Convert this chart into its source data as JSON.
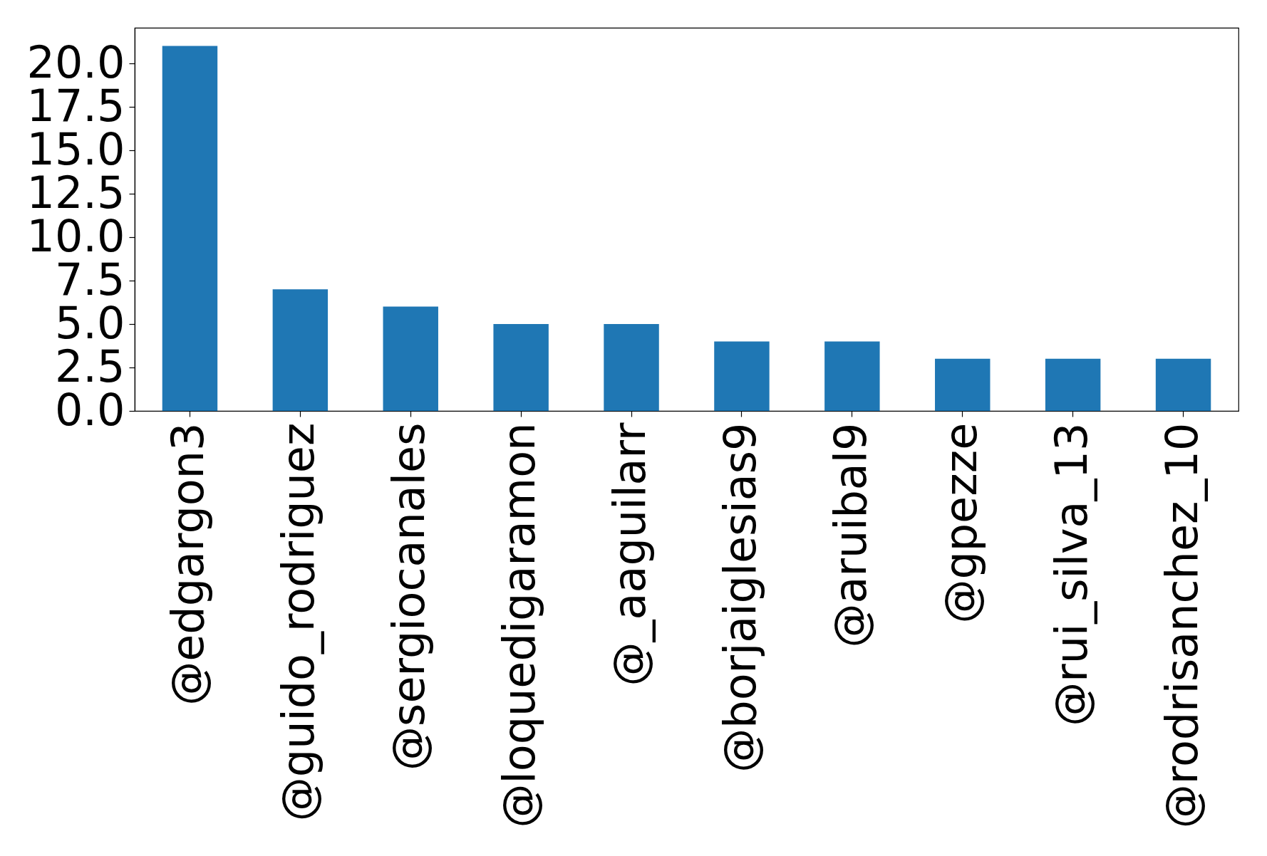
{
  "chart_data": {
    "type": "bar",
    "categories": [
      "@edgargon3",
      "@guido_rodriguez",
      "@sergiocanales",
      "@loquedigaramon",
      "@_aaguilarr",
      "@borjaiglesias9",
      "@aruibal9",
      "@gpezze",
      "@rui_silva_13",
      "@rodrisanchez_10"
    ],
    "values": [
      21,
      7,
      6,
      5,
      5,
      4,
      4,
      3,
      3,
      3
    ],
    "color": "#1f77b4",
    "ylim": [
      0,
      22.05
    ],
    "yticks": [
      {
        "value": 0,
        "label": "0.0"
      },
      2.5,
      {
        "value": 5,
        "label": "5.0"
      },
      7.5,
      {
        "value": 10,
        "label": "10.0"
      },
      12.5,
      {
        "value": 15,
        "label": "15.0"
      },
      17.5,
      {
        "value": 20,
        "label": "20.0"
      }
    ],
    "grid": false
  }
}
